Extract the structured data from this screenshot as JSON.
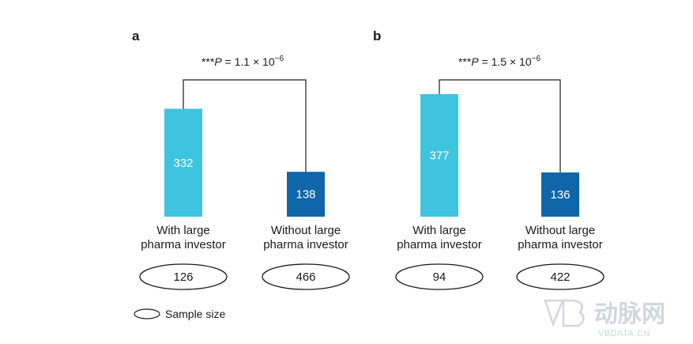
{
  "chart_data": [
    {
      "type": "bar",
      "panel_label": "a",
      "pvalue": {
        "prefix": "***",
        "var": "P",
        "text": " = 1.1 × 10",
        "exp": "−6"
      },
      "categories": [
        [
          "With large",
          "pharma investor"
        ],
        [
          "Without large",
          "pharma investor"
        ]
      ],
      "values": [
        332,
        138
      ],
      "sample_sizes": [
        126,
        466
      ],
      "colors": [
        "#3ec4de",
        "#0f66a8"
      ]
    },
    {
      "type": "bar",
      "panel_label": "b",
      "pvalue": {
        "prefix": "***",
        "var": "P",
        "text": " = 1.5 × 10",
        "exp": "−6"
      },
      "categories": [
        [
          "With large",
          "pharma investor"
        ],
        [
          "Without large",
          "pharma investor"
        ]
      ],
      "values": [
        377,
        136
      ],
      "sample_sizes": [
        94,
        422
      ],
      "colors": [
        "#3ec4de",
        "#0f66a8"
      ]
    }
  ],
  "legend": {
    "label": "Sample size"
  },
  "watermark": {
    "cn": "动脉网",
    "en": "VBDATA.CN"
  }
}
